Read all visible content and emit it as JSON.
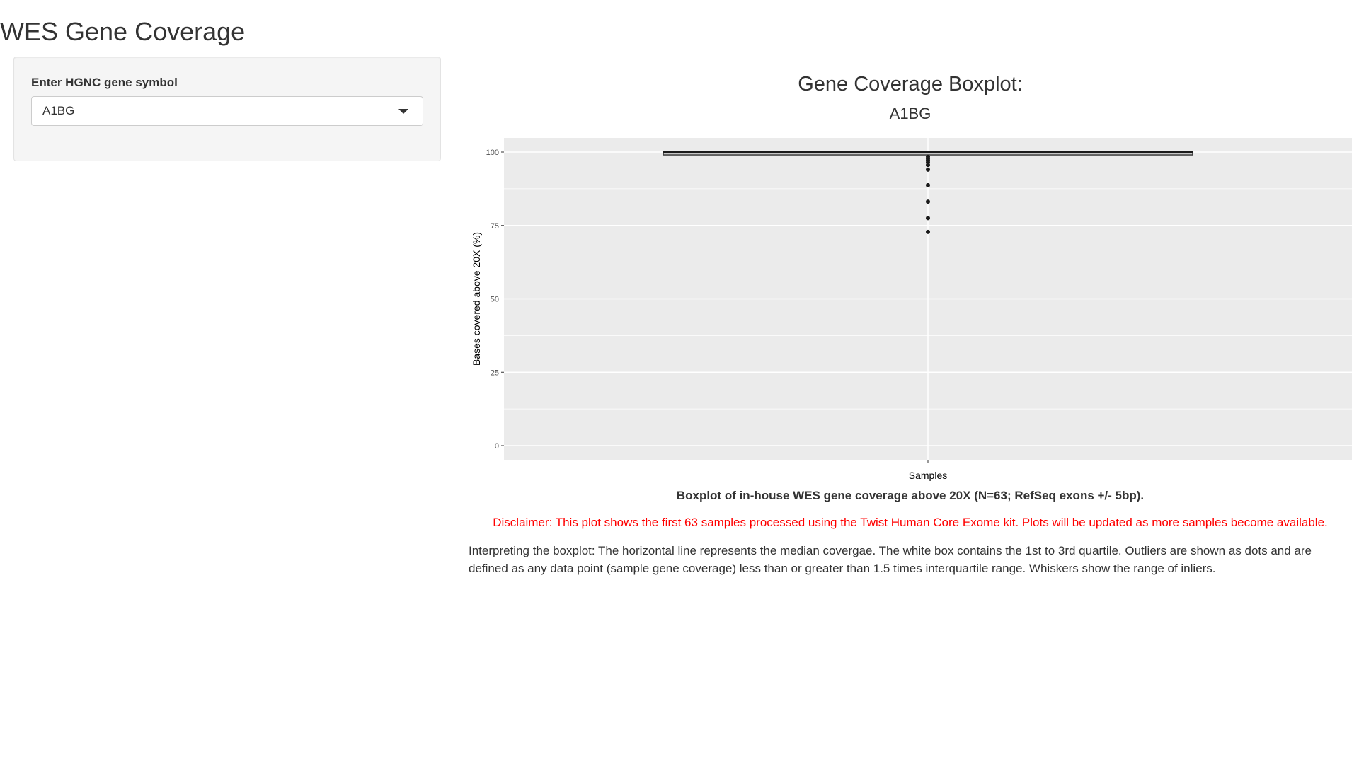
{
  "page": {
    "title": "WES Gene Coverage"
  },
  "sidebar": {
    "gene_input_label": "Enter HGNC gene symbol",
    "gene_selected": "A1BG"
  },
  "plot": {
    "title": "Gene Coverage Boxplot:",
    "subtitle": "A1BG",
    "caption": "Boxplot of in-house WES gene coverage above 20X (N=63; RefSeq exons +/- 5bp).",
    "disclaimer": "Disclaimer: This plot shows the first 63 samples processed using the Twist Human Core Exome kit. Plots will be updated as more samples become available.",
    "interpretation": "Interpreting the boxplot: The horizontal line represents the median covergae. The white box contains the 1st to 3rd quartile. Outliers are shown as dots and are defined as any data point (sample gene coverage) less than or greater than 1.5 times interquartile range. Whiskers show the range of inliers."
  },
  "chart_data": {
    "type": "boxplot",
    "xlabel": "Samples",
    "ylabel": "Bases covered above 20X (%)",
    "ylim": [
      0,
      100
    ],
    "yticks": [
      0,
      25,
      50,
      75,
      100
    ],
    "box": {
      "q1": 99.5,
      "median": 100,
      "q3": 100,
      "whisker_low": 99.2,
      "whisker_high": 100
    },
    "outliers": [
      98.4,
      97.8,
      97.2,
      96.5,
      95.6,
      94.0,
      88.7,
      83.1,
      77.5,
      72.8
    ],
    "grid": true,
    "background": "#ebebeb",
    "outlier_color": "#1a1a1a"
  }
}
